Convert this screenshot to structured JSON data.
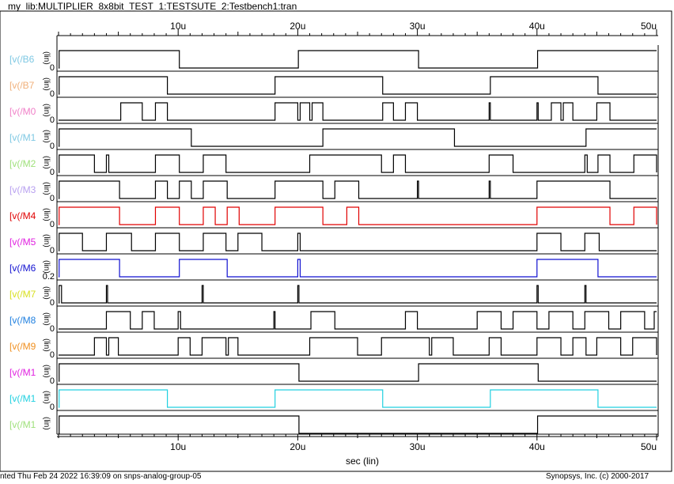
{
  "title": "my_lib:MULTIPLIER_8x8bit_TEST_1:TESTSUTE_2:Testbench1:tran",
  "footer": {
    "left": "nted Thu Feb 24 2022 16:39:09 on snps-analog-group-05",
    "right": "Synopsys, Inc. (c) 2000-2017"
  },
  "chart_data": {
    "type": "line",
    "x_axis": {
      "label": "sec (lin)",
      "ticks": [
        "10u",
        "20u",
        "30u",
        "40u",
        "50u"
      ],
      "tick_values": [
        10,
        20,
        30,
        40,
        50
      ],
      "range": [
        0,
        50
      ],
      "unit": "u"
    },
    "unit_label": "(lin)",
    "series": [
      {
        "name": "[v(/B6",
        "color": "#7ec8e3",
        "line": "#000000",
        "zero": "0",
        "starts_high": false,
        "edges": [
          0.05,
          10.1,
          20.05,
          30.1,
          40.05
        ]
      },
      {
        "name": "[v(/B7",
        "color": "#f0b07a",
        "line": "#000000",
        "zero": "0",
        "starts_high": false,
        "edges": [
          0.05,
          9.1,
          18.1,
          27.1,
          36.1,
          45.1
        ]
      },
      {
        "name": "[v(/M0",
        "color": "#f080c8",
        "line": "#000000",
        "zero": "0",
        "starts_high": false,
        "edges": [
          5.2,
          7.0,
          8.1,
          9.1,
          18.1,
          20.0,
          20.2,
          21.0,
          21.2,
          22.1,
          27.1,
          28.0,
          29.0,
          30.0,
          36.0,
          36.1,
          40.0,
          40.1,
          41.2,
          42.0,
          42.2,
          43.0,
          45.0,
          46.1
        ]
      },
      {
        "name": "[v(/M1",
        "color": "#7ec8e3",
        "line": "#000000",
        "zero": "0",
        "starts_high": false,
        "edges": [
          0.05,
          11.1,
          22.1,
          33.1,
          44.1
        ]
      },
      {
        "name": "[v(/M2",
        "color": "#9ee07a",
        "line": "#000000",
        "zero": "0",
        "starts_high": false,
        "edges": [
          0.05,
          3.0,
          4.0,
          4.2,
          8.1,
          10.1,
          12.1,
          14.0,
          21.0,
          27.0,
          28.0,
          29.0,
          36.0,
          38.0,
          44.0,
          44.2,
          45.1,
          46.1,
          48.1,
          50.0
        ]
      },
      {
        "name": "[v(/M3",
        "color": "#b8a0f0",
        "line": "#000000",
        "zero": "0",
        "starts_high": false,
        "edges": [
          0.05,
          5.1,
          8.1,
          9.1,
          10.1,
          11.1,
          12.1,
          14.1,
          18.1,
          22.1,
          23.1,
          25.1,
          30.0,
          30.1,
          36.0,
          36.1,
          40.0,
          46.1
        ]
      },
      {
        "name": "[v(/M4",
        "color": "#e00000",
        "line": "#e00000",
        "zero": "0",
        "starts_high": false,
        "edges": [
          0.05,
          5.1,
          8.1,
          10.1,
          12.1,
          13.1,
          14.1,
          15.1,
          18.1,
          22.1,
          24.1,
          25.1,
          40.0,
          46.1,
          48.1,
          50.0
        ]
      },
      {
        "name": "[v(/M5",
        "color": "#e020e0",
        "line": "#000000",
        "zero": "0",
        "starts_high": false,
        "edges": [
          0.05,
          2.0,
          4.0,
          6.1,
          8.1,
          10.1,
          12.1,
          14.0,
          15.0,
          17.0,
          20.0,
          20.2,
          40.0,
          42.0,
          44.0,
          45.2
        ]
      },
      {
        "name": "[v(/M6",
        "color": "#1010d0",
        "line": "#1010d0",
        "zero": "0.2",
        "starts_high": false,
        "edges": [
          0.05,
          5.1,
          10.1,
          14.1,
          20.0,
          20.2,
          40.0,
          45.1
        ]
      },
      {
        "name": "[v(/M7",
        "color": "#d8e020",
        "line": "#000000",
        "zero": "0",
        "starts_high": false,
        "edges": [
          0.05,
          0.25,
          4.0,
          4.1,
          12.0,
          12.1,
          20.0,
          20.1,
          40.0,
          40.1,
          44.0,
          44.1
        ]
      },
      {
        "name": "[v(/M8",
        "color": "#2080e0",
        "line": "#000000",
        "zero": "0",
        "starts_high": false,
        "edges": [
          4.0,
          6.0,
          7.0,
          8.0,
          10.0,
          10.2,
          18.0,
          18.1,
          21.1,
          23.1,
          29.0,
          30.0,
          35.0,
          37.0,
          38.0,
          40.0,
          41.0,
          43.0,
          44.0,
          46.0,
          47.0,
          49.0,
          49.8
        ]
      },
      {
        "name": "[v(/M9",
        "color": "#f09020",
        "line": "#000000",
        "zero": "0",
        "starts_high": false,
        "edges": [
          3.0,
          4.0,
          4.2,
          5.0,
          10.0,
          11.0,
          12.0,
          14.0,
          14.2,
          15.0,
          21.0,
          25.0,
          27.0,
          31.0,
          31.2,
          33.0,
          36.0,
          37.0,
          40.0,
          42.0,
          43.0,
          44.1,
          45.0,
          47.0,
          48.0,
          50.0
        ]
      },
      {
        "name": "[v(/M1",
        "color": "#e020e0",
        "line": "#000000",
        "zero": "0",
        "starts_high": false,
        "edges": [
          0.05,
          20.1,
          30.1,
          40.1
        ]
      },
      {
        "name": "[v(/M1",
        "color": "#20d0e0",
        "line": "#20d0e0",
        "zero": "0",
        "starts_high": false,
        "edges": [
          0.05,
          9.1,
          18.1,
          27.1,
          36.1,
          45.1
        ]
      },
      {
        "name": "[v(/M1",
        "color": "#9ee07a",
        "line": "#000000",
        "zero": "",
        "starts_high": false,
        "edges": [
          0.05,
          20.1,
          40.05
        ]
      }
    ]
  }
}
